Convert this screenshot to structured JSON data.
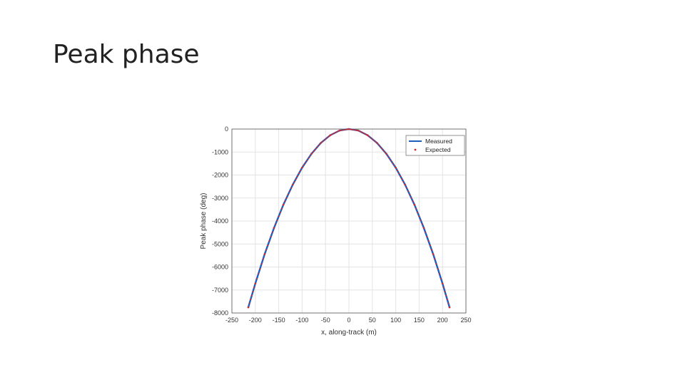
{
  "slide": {
    "title": "Peak phase"
  },
  "chart_data": {
    "type": "line",
    "title": "",
    "xlabel": "x, along-track (m)",
    "ylabel": "Peak phase (deg)",
    "xlim": [
      -250,
      250
    ],
    "ylim": [
      -8000,
      0
    ],
    "xticks": [
      -250,
      -200,
      -150,
      -100,
      -50,
      0,
      50,
      100,
      150,
      200,
      250
    ],
    "yticks": [
      0,
      -1000,
      -2000,
      -3000,
      -4000,
      -5000,
      -6000,
      -7000,
      -8000
    ],
    "grid": true,
    "legend_position": "top-right",
    "colors": {
      "measured": "#1f5fbf",
      "expected": "#d62728",
      "grid": "#e3e3e3",
      "axis": "#555555"
    },
    "series": [
      {
        "name": "Measured",
        "style": "line",
        "x": [
          -215,
          -200,
          -180,
          -160,
          -140,
          -120,
          -100,
          -80,
          -60,
          -40,
          -20,
          0,
          20,
          40,
          60,
          80,
          100,
          120,
          140,
          160,
          180,
          200,
          215
        ],
        "y": [
          -7755,
          -6720,
          -5440,
          -4300,
          -3290,
          -2420,
          -1680,
          -1075,
          -605,
          -270,
          -65,
          0,
          -65,
          -270,
          -605,
          -1075,
          -1680,
          -2420,
          -3290,
          -4300,
          -5440,
          -6720,
          -7755
        ]
      },
      {
        "name": "Expected",
        "style": "points",
        "x": [
          -215,
          -200,
          -180,
          -160,
          -140,
          -120,
          -100,
          -80,
          -60,
          -40,
          -20,
          0,
          20,
          40,
          60,
          80,
          100,
          120,
          140,
          160,
          180,
          200,
          215
        ],
        "y": [
          -7755,
          -6720,
          -5440,
          -4300,
          -3290,
          -2420,
          -1680,
          -1075,
          -605,
          -270,
          -65,
          0,
          -65,
          -270,
          -605,
          -1075,
          -1680,
          -2420,
          -3290,
          -4300,
          -5440,
          -6720,
          -7755
        ]
      }
    ]
  }
}
